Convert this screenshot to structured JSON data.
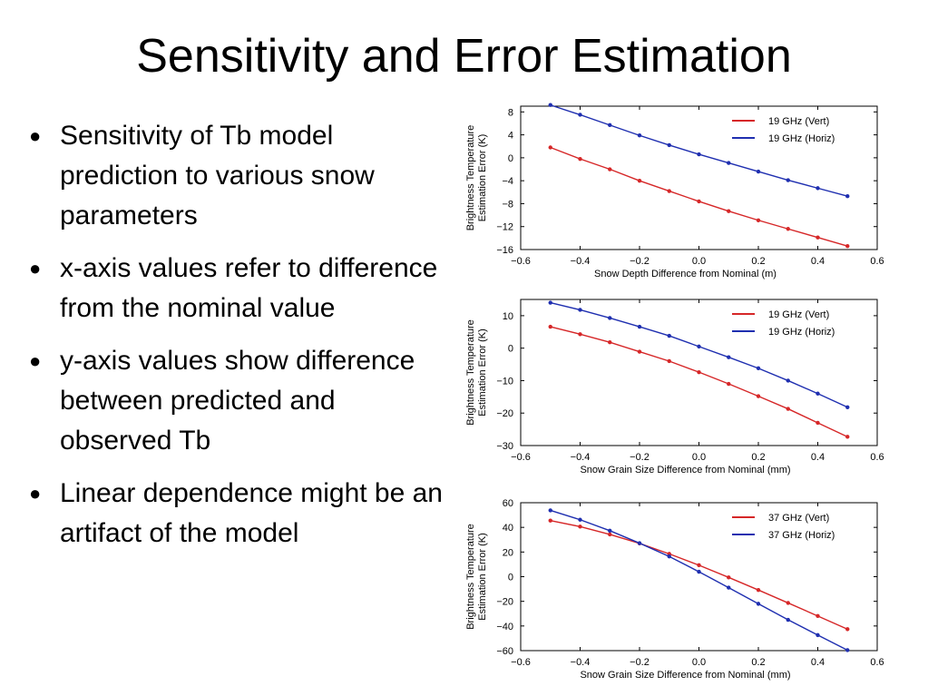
{
  "slide": {
    "title": "Sensitivity and Error Estimation",
    "bullets": [
      "Sensitivity of Tb model prediction to various snow parameters",
      "x-axis values refer to difference from the nominal value",
      "y-axis values show difference between predicted and observed Tb",
      "Linear dependence might be an artifact of the model"
    ]
  },
  "colors": {
    "vert": "#d62728",
    "horiz": "#1f2fb0",
    "axis": "#000000",
    "grid": "none"
  },
  "chart_data": [
    {
      "type": "line",
      "title": "",
      "xlabel": "Snow Depth Difference from Nominal (m)",
      "ylabel": [
        "Brightness Temperature",
        "Estimation Error (K)"
      ],
      "xlim": [
        -0.6,
        0.6
      ],
      "ylim": [
        -16,
        9
      ],
      "xticks": [
        -0.6,
        -0.4,
        -0.2,
        0.0,
        0.2,
        0.4,
        0.6
      ],
      "xtick_labels": [
        "−0.6",
        "−0.4",
        "−0.2",
        "0.0",
        "0.2",
        "0.4",
        "0.6"
      ],
      "yticks": [
        -16,
        -12,
        -8,
        -4,
        0,
        4,
        8
      ],
      "ytick_labels": [
        "−16",
        "−12",
        "−8",
        "−4",
        "0",
        "4",
        "8"
      ],
      "legend_position": "top-right",
      "grid": false,
      "x": [
        -0.5,
        -0.4,
        -0.3,
        -0.2,
        -0.1,
        0.0,
        0.1,
        0.2,
        0.3,
        0.4,
        0.5
      ],
      "series": [
        {
          "name": "19 GHz (Vert)",
          "color": "#d62728",
          "values": [
            1.8,
            -0.2,
            -2.0,
            -4.0,
            -5.8,
            -7.6,
            -9.3,
            -10.9,
            -12.4,
            -13.9,
            -15.4
          ]
        },
        {
          "name": "19 GHz (Horiz)",
          "color": "#1f2fb0",
          "values": [
            9.2,
            7.5,
            5.7,
            3.9,
            2.2,
            0.6,
            -0.9,
            -2.4,
            -3.9,
            -5.3,
            -6.7
          ]
        }
      ]
    },
    {
      "type": "line",
      "title": "",
      "xlabel": "Snow Grain Size Difference from Nominal (mm)",
      "ylabel": [
        "Brightness Temperature",
        "Estimation Error (K)"
      ],
      "xlim": [
        -0.6,
        0.6
      ],
      "ylim": [
        -30,
        15
      ],
      "xticks": [
        -0.6,
        -0.4,
        -0.2,
        0.0,
        0.2,
        0.4,
        0.6
      ],
      "xtick_labels": [
        "−0.6",
        "−0.4",
        "−0.2",
        "0.0",
        "0.2",
        "0.4",
        "0.6"
      ],
      "yticks": [
        -30,
        -20,
        -10,
        0,
        10
      ],
      "ytick_labels": [
        "−30",
        "−20",
        "−10",
        "0",
        "10"
      ],
      "legend_position": "top-right",
      "grid": false,
      "x": [
        -0.5,
        -0.4,
        -0.3,
        -0.2,
        -0.1,
        0.0,
        0.1,
        0.2,
        0.3,
        0.4,
        0.5
      ],
      "series": [
        {
          "name": "19 GHz (Vert)",
          "color": "#d62728",
          "values": [
            6.6,
            4.3,
            1.8,
            -1.1,
            -4.0,
            -7.4,
            -11.0,
            -14.8,
            -18.7,
            -23.0,
            -27.3
          ]
        },
        {
          "name": "19 GHz (Horiz)",
          "color": "#1f2fb0",
          "values": [
            14.0,
            11.8,
            9.3,
            6.6,
            3.8,
            0.5,
            -2.8,
            -6.2,
            -10.0,
            -14.0,
            -18.2
          ]
        }
      ]
    },
    {
      "type": "line",
      "title": "",
      "xlabel": "Snow Grain Size Difference from Nominal (mm)",
      "ylabel": [
        "Brightness Temperature",
        "Estimation Error (K)"
      ],
      "xlim": [
        -0.6,
        0.6
      ],
      "ylim": [
        -60,
        60
      ],
      "xticks": [
        -0.6,
        -0.4,
        -0.2,
        0.0,
        0.2,
        0.4,
        0.6
      ],
      "xtick_labels": [
        "−0.6",
        "−0.4",
        "−0.2",
        "0.0",
        "0.2",
        "0.4",
        "0.6"
      ],
      "yticks": [
        -60,
        -40,
        -20,
        0,
        20,
        40,
        60
      ],
      "ytick_labels": [
        "−60",
        "−40",
        "−20",
        "0",
        "20",
        "40",
        "60"
      ],
      "legend_position": "top-right",
      "grid": false,
      "x": [
        -0.5,
        -0.4,
        -0.3,
        -0.2,
        -0.1,
        0.0,
        0.1,
        0.2,
        0.3,
        0.4,
        0.5
      ],
      "series": [
        {
          "name": "37 GHz (Vert)",
          "color": "#d62728",
          "values": [
            45.5,
            40.6,
            34.3,
            27.0,
            18.5,
            9.3,
            -0.6,
            -10.8,
            -21.3,
            -31.9,
            -42.6
          ]
        },
        {
          "name": "37 GHz (Horiz)",
          "color": "#1f2fb0",
          "values": [
            53.8,
            46.2,
            37.3,
            27.2,
            16.4,
            4.0,
            -8.9,
            -22.0,
            -35.0,
            -47.4,
            -59.6
          ]
        }
      ]
    }
  ]
}
